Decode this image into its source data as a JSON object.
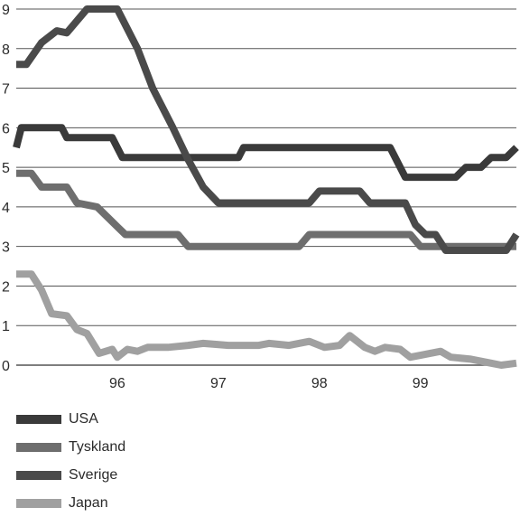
{
  "chart_data": {
    "type": "line",
    "title": "",
    "xlabel": "",
    "ylabel": "",
    "ylim": [
      0,
      9
    ],
    "xlim": [
      95.0,
      99.95
    ],
    "yticks": [
      "0",
      "1",
      "2",
      "3",
      "4",
      "5",
      "6",
      "7",
      "8",
      "9"
    ],
    "xticks": [
      "96",
      "97",
      "98",
      "99"
    ],
    "grid": "horizontal",
    "legend_position": "below",
    "series": [
      {
        "name": "USA",
        "color": "#3a3a3a",
        "points": [
          [
            95.0,
            5.5
          ],
          [
            95.05,
            6.0
          ],
          [
            95.45,
            6.0
          ],
          [
            95.5,
            5.75
          ],
          [
            95.95,
            5.75
          ],
          [
            96.05,
            5.25
          ],
          [
            97.2,
            5.25
          ],
          [
            97.25,
            5.5
          ],
          [
            98.7,
            5.5
          ],
          [
            98.85,
            4.75
          ],
          [
            99.35,
            4.75
          ],
          [
            99.45,
            5.0
          ],
          [
            99.6,
            5.0
          ],
          [
            99.7,
            5.25
          ],
          [
            99.85,
            5.25
          ],
          [
            99.95,
            5.5
          ]
        ]
      },
      {
        "name": "Tyskland",
        "color": "#6e6e6e",
        "points": [
          [
            95.0,
            4.85
          ],
          [
            95.15,
            4.85
          ],
          [
            95.25,
            4.5
          ],
          [
            95.5,
            4.5
          ],
          [
            95.6,
            4.1
          ],
          [
            95.8,
            4.0
          ],
          [
            96.0,
            3.5
          ],
          [
            96.08,
            3.3
          ],
          [
            96.6,
            3.3
          ],
          [
            96.7,
            3.0
          ],
          [
            97.8,
            3.0
          ],
          [
            97.9,
            3.3
          ],
          [
            98.9,
            3.3
          ],
          [
            99.0,
            3.0
          ],
          [
            99.95,
            3.0
          ]
        ]
      },
      {
        "name": "Sverige",
        "color": "#4a4a4a",
        "points": [
          [
            95.0,
            7.6
          ],
          [
            95.1,
            7.6
          ],
          [
            95.25,
            8.15
          ],
          [
            95.4,
            8.45
          ],
          [
            95.5,
            8.4
          ],
          [
            95.7,
            9.0
          ],
          [
            96.0,
            9.0
          ],
          [
            96.2,
            8.0
          ],
          [
            96.35,
            7.0
          ],
          [
            96.55,
            6.0
          ],
          [
            96.7,
            5.2
          ],
          [
            96.85,
            4.5
          ],
          [
            97.0,
            4.1
          ],
          [
            97.9,
            4.1
          ],
          [
            98.0,
            4.4
          ],
          [
            98.4,
            4.4
          ],
          [
            98.5,
            4.1
          ],
          [
            98.85,
            4.1
          ],
          [
            98.95,
            3.55
          ],
          [
            99.05,
            3.3
          ],
          [
            99.15,
            3.3
          ],
          [
            99.25,
            2.9
          ],
          [
            99.85,
            2.9
          ],
          [
            99.95,
            3.3
          ]
        ]
      },
      {
        "name": "Japan",
        "color": "#a0a0a0",
        "points": [
          [
            95.0,
            2.3
          ],
          [
            95.15,
            2.3
          ],
          [
            95.25,
            1.9
          ],
          [
            95.35,
            1.3
          ],
          [
            95.5,
            1.25
          ],
          [
            95.6,
            0.9
          ],
          [
            95.7,
            0.8
          ],
          [
            95.82,
            0.3
          ],
          [
            95.95,
            0.4
          ],
          [
            96.0,
            0.2
          ],
          [
            96.1,
            0.4
          ],
          [
            96.2,
            0.35
          ],
          [
            96.3,
            0.45
          ],
          [
            96.5,
            0.45
          ],
          [
            96.7,
            0.5
          ],
          [
            96.85,
            0.55
          ],
          [
            97.1,
            0.5
          ],
          [
            97.4,
            0.5
          ],
          [
            97.5,
            0.55
          ],
          [
            97.7,
            0.5
          ],
          [
            97.9,
            0.6
          ],
          [
            98.05,
            0.45
          ],
          [
            98.2,
            0.5
          ],
          [
            98.3,
            0.75
          ],
          [
            98.45,
            0.45
          ],
          [
            98.55,
            0.35
          ],
          [
            98.65,
            0.45
          ],
          [
            98.8,
            0.4
          ],
          [
            98.9,
            0.2
          ],
          [
            99.0,
            0.25
          ],
          [
            99.2,
            0.35
          ],
          [
            99.3,
            0.2
          ],
          [
            99.5,
            0.15
          ],
          [
            99.7,
            0.05
          ],
          [
            99.8,
            0.0
          ],
          [
            99.95,
            0.05
          ]
        ]
      }
    ]
  }
}
